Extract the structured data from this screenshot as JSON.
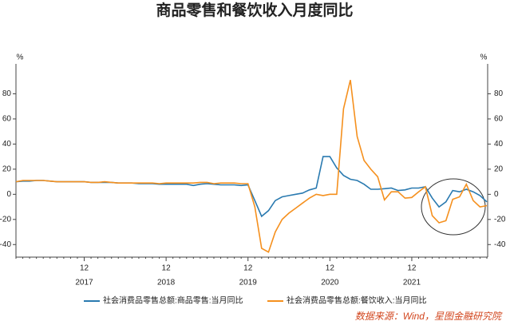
{
  "chart_data": {
    "type": "line",
    "title": "商品零售和餐饮收入月度同比",
    "y_unit": "%",
    "source": "数据来源：Wind，星图金融研究院",
    "categories": [
      null,
      null,
      null,
      null,
      null,
      null,
      null,
      null,
      null,
      null,
      "12",
      null,
      null,
      null,
      null,
      null,
      null,
      null,
      null,
      null,
      null,
      null,
      "12",
      null,
      null,
      null,
      null,
      null,
      null,
      null,
      null,
      null,
      null,
      null,
      "12",
      null,
      null,
      null,
      null,
      null,
      null,
      null,
      null,
      null,
      null,
      null,
      "12",
      null,
      null,
      null,
      null,
      null,
      null,
      null,
      null,
      null,
      null,
      null,
      "12",
      null,
      null,
      null,
      null,
      null,
      null,
      null,
      null,
      null,
      null,
      null
    ],
    "year_labels": [
      "2017",
      "2018",
      "2019",
      "2020",
      "2021"
    ],
    "series": [
      {
        "name": "社会消费品零售总额:商品零售:当月同比",
        "color": "#2a7ab0",
        "values": [
          10,
          10.5,
          10.5,
          11,
          11,
          10.5,
          10,
          10,
          10,
          10,
          10,
          9.5,
          9.5,
          9.5,
          9.5,
          9,
          9,
          9,
          8.5,
          8.5,
          8.5,
          8,
          8,
          8,
          8,
          8,
          7,
          8,
          8.5,
          8,
          7.5,
          7.5,
          7.5,
          7,
          7.5,
          -5,
          -17.5,
          -13,
          -5,
          -2,
          -1,
          0,
          1,
          3.5,
          5,
          30,
          30,
          21,
          15,
          12,
          11,
          8,
          4,
          4,
          4.5,
          5,
          3,
          3.5,
          5,
          5,
          6,
          -3,
          -10,
          -6,
          3,
          2,
          4,
          2,
          -1,
          -6
        ]
      },
      {
        "name": "社会消费品零售总额:餐饮收入:当月同比",
        "color": "#f5901e",
        "values": [
          10,
          11,
          11,
          11,
          11,
          10.5,
          10,
          10,
          10,
          10,
          10,
          9.5,
          9.5,
          10,
          9.5,
          9,
          9,
          9,
          9,
          9,
          9,
          8.5,
          9,
          9,
          9,
          9,
          9,
          9.5,
          9.5,
          8.5,
          9,
          9,
          9,
          8.5,
          8.5,
          -10,
          -43,
          -46,
          -30,
          -20,
          -15,
          -11,
          -7,
          -3,
          0,
          -1,
          0,
          0,
          68,
          91,
          46,
          27,
          20,
          14,
          -4.5,
          2,
          2,
          -3,
          -2.5,
          2,
          6,
          -17,
          -22.7,
          -21,
          -4,
          -2,
          8,
          -5,
          -10,
          -9
        ]
      }
    ],
    "ylim": [
      -50,
      100
    ],
    "yticks": [
      -40,
      -20,
      0,
      20,
      40,
      60,
      80
    ]
  }
}
